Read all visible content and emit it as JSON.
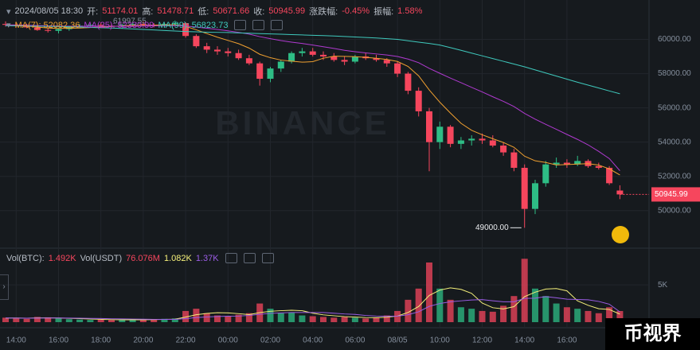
{
  "header": {
    "time": "2024/08/05 18:30",
    "open_label": "开:",
    "high_label": "高:",
    "low_label": "低:",
    "close_label": "收:",
    "change_label": "涨跌幅:",
    "change": "-0.45%",
    "amplitude_label": "振幅:",
    "amplitude": "1.58%",
    "vol_btc_label": "Vol(BTC):",
    "vol_btc": "1.492K",
    "vol_usdt_label": "Vol(USDT)",
    "vol_usdt": "76.076M"
  },
  "watermark": "BINANCE",
  "badge": "币视界",
  "chart_data": {
    "type": "candlestick",
    "grid": true,
    "up_color": "#2ebd85",
    "down_color": "#f6465d",
    "categories": [
      null,
      "14:00",
      null,
      null,
      null,
      "16:00",
      null,
      null,
      null,
      "18:00",
      null,
      null,
      null,
      "20:00",
      null,
      null,
      null,
      "22:00",
      null,
      null,
      null,
      "00:00",
      null,
      null,
      null,
      "02:00",
      null,
      null,
      null,
      "04:00",
      null,
      null,
      null,
      "06:00",
      null,
      null,
      null,
      "08/05",
      null,
      null,
      null,
      "10:00",
      null,
      null,
      null,
      "12:00",
      null,
      null,
      null,
      "14:00",
      null,
      null,
      null,
      "16:00",
      null,
      null,
      null,
      null,
      null
    ],
    "open": [
      60900,
      60850,
      60800,
      60700,
      60550,
      60500,
      60600,
      60750,
      60800,
      60850,
      60800,
      60750,
      60850,
      60900,
      60850,
      60800,
      60900,
      60950,
      60200,
      59600,
      59400,
      59300,
      59200,
      58900,
      58600,
      57700,
      58300,
      58700,
      59200,
      59300,
      59100,
      59000,
      58800,
      58700,
      59000,
      58900,
      58800,
      58600,
      58000,
      57000,
      55800,
      54000,
      54900,
      53900,
      54100,
      54200,
      54100,
      53800,
      53400,
      52500,
      50100,
      51600,
      52700,
      52800,
      52700,
      52900,
      52600,
      52500,
      51174.01
    ],
    "high": [
      61050,
      60950,
      60900,
      60850,
      60700,
      60650,
      60800,
      60900,
      60950,
      61000,
      60900,
      60900,
      61000,
      61050,
      60950,
      60950,
      61100,
      61000,
      60300,
      59800,
      59600,
      59500,
      59400,
      59100,
      58700,
      58400,
      58800,
      59300,
      59500,
      59500,
      59300,
      59200,
      59000,
      59100,
      59200,
      59100,
      58900,
      58700,
      58100,
      57200,
      56000,
      55200,
      55000,
      54300,
      54400,
      54500,
      54400,
      54000,
      53600,
      52700,
      51800,
      52900,
      53100,
      53000,
      53200,
      53000,
      52800,
      52600,
      51478.71
    ],
    "low": [
      60750,
      60700,
      60650,
      60500,
      60400,
      60350,
      60500,
      60650,
      60700,
      60750,
      60650,
      60650,
      60750,
      60800,
      60700,
      60700,
      60800,
      60100,
      59500,
      59200,
      59100,
      59000,
      58800,
      58500,
      57300,
      57500,
      58100,
      58600,
      59000,
      59000,
      58800,
      58700,
      58500,
      58600,
      58800,
      58700,
      58400,
      57800,
      56800,
      55500,
      52300,
      53600,
      53700,
      53600,
      53800,
      53900,
      53700,
      53200,
      52300,
      49000,
      49800,
      51400,
      52500,
      52500,
      52600,
      52500,
      52400,
      51500,
      50671.66
    ],
    "close": [
      60850,
      60800,
      60700,
      60550,
      60500,
      60600,
      60750,
      60800,
      60850,
      60800,
      60750,
      60850,
      60900,
      60850,
      60800,
      60900,
      60950,
      60200,
      59600,
      59400,
      59300,
      59200,
      58900,
      58600,
      57700,
      58300,
      58700,
      59200,
      59300,
      59100,
      59000,
      58800,
      58700,
      59000,
      58900,
      58800,
      58600,
      58000,
      57000,
      55800,
      54000,
      54900,
      53900,
      54100,
      54200,
      54100,
      53800,
      53400,
      52500,
      50100,
      51600,
      52700,
      52800,
      52700,
      52900,
      52600,
      52500,
      51600,
      50945.99
    ],
    "ylim": [
      47900,
      62300
    ],
    "yticks": [
      {
        "value": 50000,
        "label": "50000.00"
      },
      {
        "value": 52000,
        "label": "52000.00"
      },
      {
        "value": 54000,
        "label": "54000.00"
      },
      {
        "value": 56000,
        "label": "56000.00"
      },
      {
        "value": 58000,
        "label": "58000.00"
      },
      {
        "value": 60000,
        "label": "60000.00"
      }
    ],
    "ma": [
      {
        "name": "MA(7):",
        "color": "#f0a030",
        "values": [
          60850,
          60820,
          60780,
          60720,
          60660,
          60640,
          60650,
          60660,
          60690,
          60720,
          60750,
          60790,
          60820,
          60830,
          60830,
          60850,
          60860,
          60760,
          60560,
          60340,
          60130,
          59940,
          59750,
          59490,
          59130,
          58930,
          58790,
          58730,
          58670,
          58700,
          58900,
          59020,
          59010,
          58990,
          58950,
          58900,
          58830,
          58710,
          58420,
          57870,
          57050,
          56330,
          55700,
          55100,
          54690,
          54430,
          54200,
          53980,
          53700,
          53180,
          52910,
          52810,
          52670,
          52690,
          52720,
          52740,
          52660,
          52440,
          52082.36
        ]
      },
      {
        "name": "MA(25):",
        "color": "#b03ad0",
        "values": [
          60850,
          60840,
          60830,
          60810,
          60790,
          60780,
          60770,
          60770,
          60770,
          60770,
          60770,
          60770,
          60770,
          60780,
          60790,
          60800,
          60810,
          60780,
          60720,
          60650,
          60580,
          60500,
          60410,
          60310,
          60160,
          60040,
          59930,
          59840,
          59760,
          59670,
          59570,
          59470,
          59360,
          59280,
          59210,
          59150,
          59090,
          59000,
          58850,
          58640,
          58310,
          58020,
          57740,
          57470,
          57200,
          56930,
          56650,
          56380,
          56080,
          55680,
          55340,
          55040,
          54750,
          54450,
          54160,
          53840,
          53460,
          53040,
          52330.99
        ]
      },
      {
        "name": "MA(99):",
        "color": "#3fc9bd",
        "values": [
          60800,
          60790,
          60780,
          60770,
          60760,
          60750,
          60740,
          60720,
          60700,
          60680,
          60660,
          60640,
          60610,
          60580,
          60550,
          60520,
          60490,
          60460,
          60440,
          60420,
          60410,
          60400,
          60380,
          60360,
          60340,
          60320,
          60300,
          60280,
          60260,
          60240,
          60220,
          60200,
          60170,
          60140,
          60110,
          60080,
          60040,
          60000,
          59920,
          59840,
          59760,
          59670,
          59520,
          59360,
          59200,
          59040,
          58880,
          58720,
          58560,
          58400,
          58220,
          58040,
          57860,
          57680,
          57500,
          57330,
          57160,
          56990,
          56823.73
        ]
      }
    ],
    "high_annotation": 61997.55,
    "low_annotation": {
      "value": 49000,
      "label": "49000.00"
    },
    "volume": [
      600,
      500,
      450,
      700,
      650,
      500,
      400,
      350,
      300,
      350,
      300,
      280,
      300,
      350,
      400,
      450,
      500,
      1500,
      1800,
      1200,
      900,
      800,
      1000,
      1200,
      2500,
      1800,
      1200,
      1300,
      900,
      800,
      700,
      600,
      700,
      600,
      500,
      600,
      900,
      1500,
      3000,
      4500,
      8000,
      4500,
      3000,
      2000,
      1800,
      1500,
      1400,
      2200,
      3500,
      8500,
      4500,
      3500,
      2500,
      2000,
      1800,
      1500,
      1200,
      2000,
      1492
    ],
    "volume_ylim": [
      0,
      9600
    ],
    "volume_yticks": [
      {
        "value": 5000,
        "label": "5K"
      }
    ],
    "volume_ma": [
      {
        "color": "#f5f07a",
        "label": "1.082K",
        "values": [
          550,
          560,
          540,
          580,
          580,
          560,
          520,
          480,
          420,
          380,
          340,
          315,
          316,
          316,
          340,
          376,
          400,
          680,
          1000,
          1170,
          1260,
          1240,
          1140,
          1020,
          1280,
          1460,
          1540,
          1600,
          1540,
          1200,
          980,
          860,
          740,
          680,
          620,
          600,
          660,
          820,
          1300,
          2100,
          3580,
          4300,
          4600,
          4400,
          3860,
          2560,
          1940,
          1780,
          2080,
          3420,
          4020,
          4440,
          4500,
          4200,
          2860,
          2260,
          1800,
          1700,
          1082
        ]
      },
      {
        "color": "#9b5de5",
        "label": "1.37K",
        "values": [
          560,
          550,
          540,
          550,
          560,
          560,
          550,
          530,
          510,
          490,
          460,
          440,
          420,
          400,
          380,
          370,
          370,
          480,
          610,
          700,
          760,
          800,
          820,
          900,
          1050,
          1180,
          1240,
          1300,
          1300,
          1300,
          1290,
          1200,
          1100,
          1040,
          900,
          820,
          790,
          810,
          1000,
          1390,
          2120,
          2500,
          2730,
          2860,
          2970,
          3030,
          2870,
          2740,
          2740,
          3190,
          3210,
          3420,
          3270,
          3080,
          3040,
          3000,
          2780,
          2410,
          1370
        ]
      }
    ]
  }
}
